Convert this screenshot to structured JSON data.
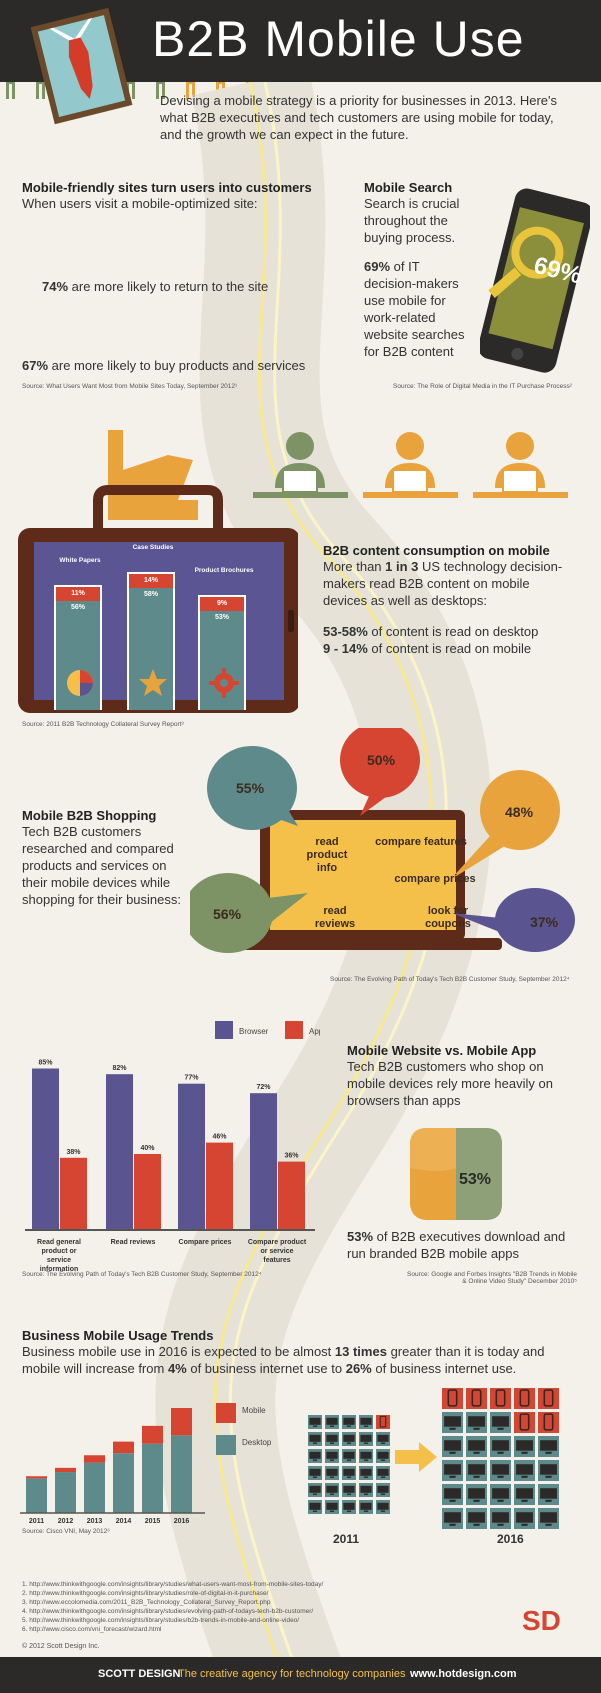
{
  "header": {
    "title": "B2B Mobile Use"
  },
  "intro": "Devising a mobile strategy is a priority for businesses in 2013. Here's what B2B executives and tech customers are using mobile for today, and the growth we can expect in the future.",
  "mobile_friendly": {
    "heading": "Mobile-friendly sites turn users into customers",
    "sub": "When users visit a mobile-optimized site:",
    "stat1_value": "74%",
    "stat1_text": " are more likely to return to the site",
    "stat2_value": "67%",
    "stat2_text": " are more likely to buy products and services",
    "source": "Source: What Users Want Most from Mobile Sites Today, September 2012¹",
    "colors": {
      "green": "#7d9366",
      "orange": "#e8a33d"
    }
  },
  "mobile_search": {
    "heading": "Mobile Search",
    "text1": "Search is crucial throughout the buying process.",
    "stat_value": "69%",
    "stat_text": " of IT decision-makers use mobile for work-related website searches for B2B content",
    "phone_stat": "69%",
    "source": "Source: The Role of Digital Media in the IT Purchase Process²"
  },
  "content_consumption": {
    "heading": "B2B content consumption on mobile",
    "text_a": "More than ",
    "text_b": "1 in 3",
    "text_c": " US technology decision-makers read B2B content on mobile devices as well as desktops:",
    "stat1_value": "53-58%",
    "stat1_text": " of content is read on desktop",
    "stat2_value": "9 - 14%",
    "stat2_text": " of content is read on mobile",
    "source": "Source: 2011 B2B Technology Collateral Survey Report³",
    "tablet_bars": [
      {
        "label": "White Papers",
        "mobile": "11%",
        "desktop": "56%"
      },
      {
        "label": "Case Studies",
        "mobile": "14%",
        "desktop": "58%"
      },
      {
        "label": "Product Brochures",
        "mobile": "9%",
        "desktop": "53%"
      }
    ]
  },
  "shopping": {
    "heading": "Mobile B2B Shopping",
    "text": "Tech B2B customers researched and compared products and services on their mobile devices while shopping for their business:",
    "bubbles": [
      {
        "value": "55%",
        "label": "read product info"
      },
      {
        "value": "50%",
        "label": "compare features"
      },
      {
        "value": "48%",
        "label": "compare prices"
      },
      {
        "value": "56%",
        "label": "read reviews"
      },
      {
        "value": "37%",
        "label": "look for coupons"
      }
    ],
    "source": "Source: The Evolving Path of Today's Tech B2B Customer Study, September 2012⁴"
  },
  "web_vs_app": {
    "heading": "Mobile Website vs. Mobile App",
    "text": "Tech B2B customers who shop on mobile devices rely more heavily on browsers than apps",
    "tile_value": "53%",
    "stat_value": "53%",
    "stat_text": " of B2B executives download and run branded B2B mobile apps",
    "source_right": "Source: Google and Forbes Insights \"B2B Trends in Mobile & Online Video Study\" December 2010⁵",
    "source_left": "Source: The Evolving Path of Today's Tech B2B Customer Study, September 2012⁴"
  },
  "chart_data": [
    {
      "type": "bar",
      "categories": [
        "Read general product or service information",
        "Read reviews",
        "Compare prices",
        "Compare product or service features"
      ],
      "series": [
        {
          "name": "Browser",
          "values": [
            85,
            82,
            77,
            72
          ],
          "labels": [
            "85%",
            "82%",
            "77%",
            "72%"
          ],
          "color": "#5a5490"
        },
        {
          "name": "App",
          "values": [
            38,
            40,
            46,
            36
          ],
          "labels": [
            "38%",
            "40%",
            "46%",
            "36%"
          ],
          "color": "#d64531"
        }
      ],
      "legend": "top"
    },
    {
      "type": "bar",
      "categories": [
        "2011",
        "2012",
        "2013",
        "2014",
        "2015",
        "2016"
      ],
      "series": [
        {
          "name": "Desktop",
          "values": [
            33,
            39,
            48,
            57,
            66,
            74
          ],
          "color": "#5f8a8b"
        },
        {
          "name": "Mobile",
          "values": [
            2,
            4,
            7,
            11,
            17,
            26
          ],
          "color": "#d64531"
        }
      ],
      "legend": "right"
    }
  ],
  "trends": {
    "heading": "Business Mobile Usage Trends",
    "text_a": "Business mobile use in 2016 is expected to be almost ",
    "text_b": "13 times",
    "text_c": " greater than it is today and mobile will increase from ",
    "text_d": "4%",
    "text_e": " of business internet use to ",
    "text_f": "26%",
    "text_g": " of business internet use.",
    "legend_mobile": "Mobile",
    "legend_desktop": "Desktop",
    "source": "Source: Cisco VNI, May 2012⁶",
    "grid_left_label": "2011",
    "grid_right_label": "2016",
    "grid_left_mobile_count": 1,
    "grid_right_mobile_count": 7
  },
  "footnotes": [
    "1. http://www.thinkwithgoogle.com/insights/library/studies/what-users-want-most-from-mobile-sites-today/",
    "2. http://www.thinkwithgoogle.com/insights/library/studies/role-of-digital-in-it-purchase/",
    "3. http://www.eccolomedia.com/2011_B2B_Technology_Collateral_Survey_Report.php",
    "4. http://www.thinkwithgoogle.com/insights/library/studies/evolving-path-of-todays-tech-b2b-customer/",
    "5. http://www.thinkwithgoogle.com/insights/library/studies/b2b-trends-in-mobile-and-online-video/",
    "6. http://www.cisco.com/vni_forecast/wizard.html"
  ],
  "copyright": "© 2012 Scott Design Inc.",
  "logo_text": "SD",
  "footer": {
    "brand": "SCOTT DESIGN",
    "tagline": "The creative agency for technology companies",
    "url": "www.hotdesign.com"
  }
}
